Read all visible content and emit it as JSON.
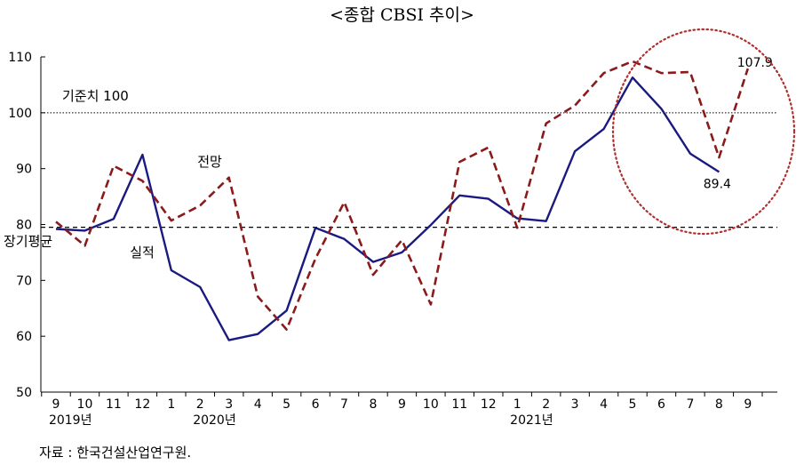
{
  "chart_data": {
    "type": "line",
    "title": "<종합 CBSI 추이>",
    "source": "자료 : 한국건설산업연구원.",
    "ylim": [
      50,
      110
    ],
    "yticks": [
      50,
      60,
      70,
      80,
      90,
      100,
      110
    ],
    "x_labels": [
      "9",
      "10",
      "11",
      "12",
      "1",
      "2",
      "3",
      "4",
      "5",
      "6",
      "7",
      "8",
      "9",
      "10",
      "11",
      "12",
      "1",
      "2",
      "3",
      "4",
      "5",
      "6",
      "7",
      "8",
      "9"
    ],
    "year_labels": [
      {
        "index": 0.5,
        "label": "2019년"
      },
      {
        "index": 5.5,
        "label": "2020년"
      },
      {
        "index": 16.5,
        "label": "2021년"
      }
    ],
    "reference_lines": [
      {
        "name": "기준치 100",
        "value": 100,
        "style": "dotted"
      },
      {
        "name": "장기평균",
        "value": 79.5,
        "style": "dashed"
      }
    ],
    "series": [
      {
        "name": "실적",
        "color": "#1a1a80",
        "style": "solid",
        "values": [
          79.2,
          78.9,
          81.0,
          92.5,
          71.8,
          68.8,
          59.3,
          60.4,
          64.6,
          79.4,
          77.4,
          73.3,
          75.0,
          79.9,
          85.2,
          84.6,
          81.1,
          80.6,
          93.1,
          97.1,
          106.3,
          100.7,
          92.7,
          89.4,
          null
        ]
      },
      {
        "name": "전망",
        "color": "#8b1a1a",
        "style": "dashed",
        "values": [
          80.5,
          76.2,
          90.5,
          87.8,
          80.7,
          83.4,
          88.4,
          67.1,
          61.2,
          73.9,
          84.0,
          71.0,
          77.2,
          65.7,
          91.2,
          93.8,
          79.4,
          98.1,
          101.3,
          107.1,
          109.2,
          107.1,
          107.3,
          92.0,
          107.9
        ]
      }
    ],
    "annotations": [
      {
        "text": "89.4",
        "series": 0,
        "index": 23
      },
      {
        "text": "107.9",
        "series": 1,
        "index": 24
      }
    ],
    "highlight": {
      "shape": "dotted-circle",
      "color": "#b03030"
    }
  }
}
